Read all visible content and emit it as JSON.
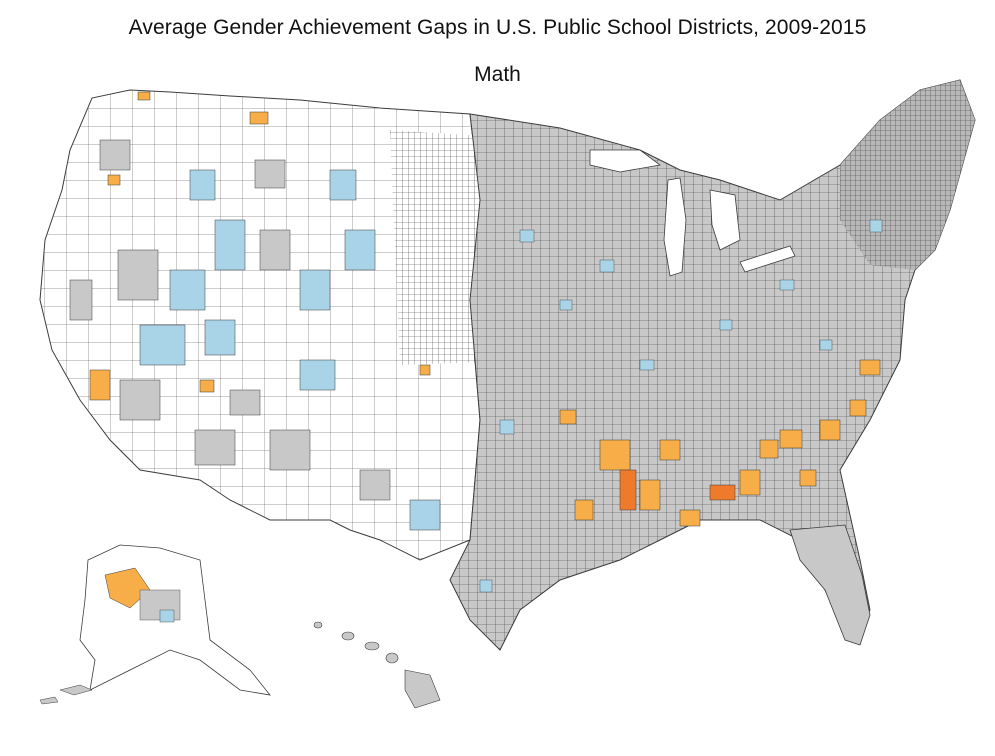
{
  "header": {
    "title": "Average Gender Achievement Gaps in U.S. Public School Districts, 2009-2015",
    "subtitle": "Math"
  },
  "map": {
    "colors": {
      "gray": "#c8c8c8",
      "blue": "#a9d4e8",
      "orange": "#f7ae48",
      "dark_orange": "#ee7a2c",
      "white": "#ffffff",
      "border": "#3c3c3c"
    }
  }
}
